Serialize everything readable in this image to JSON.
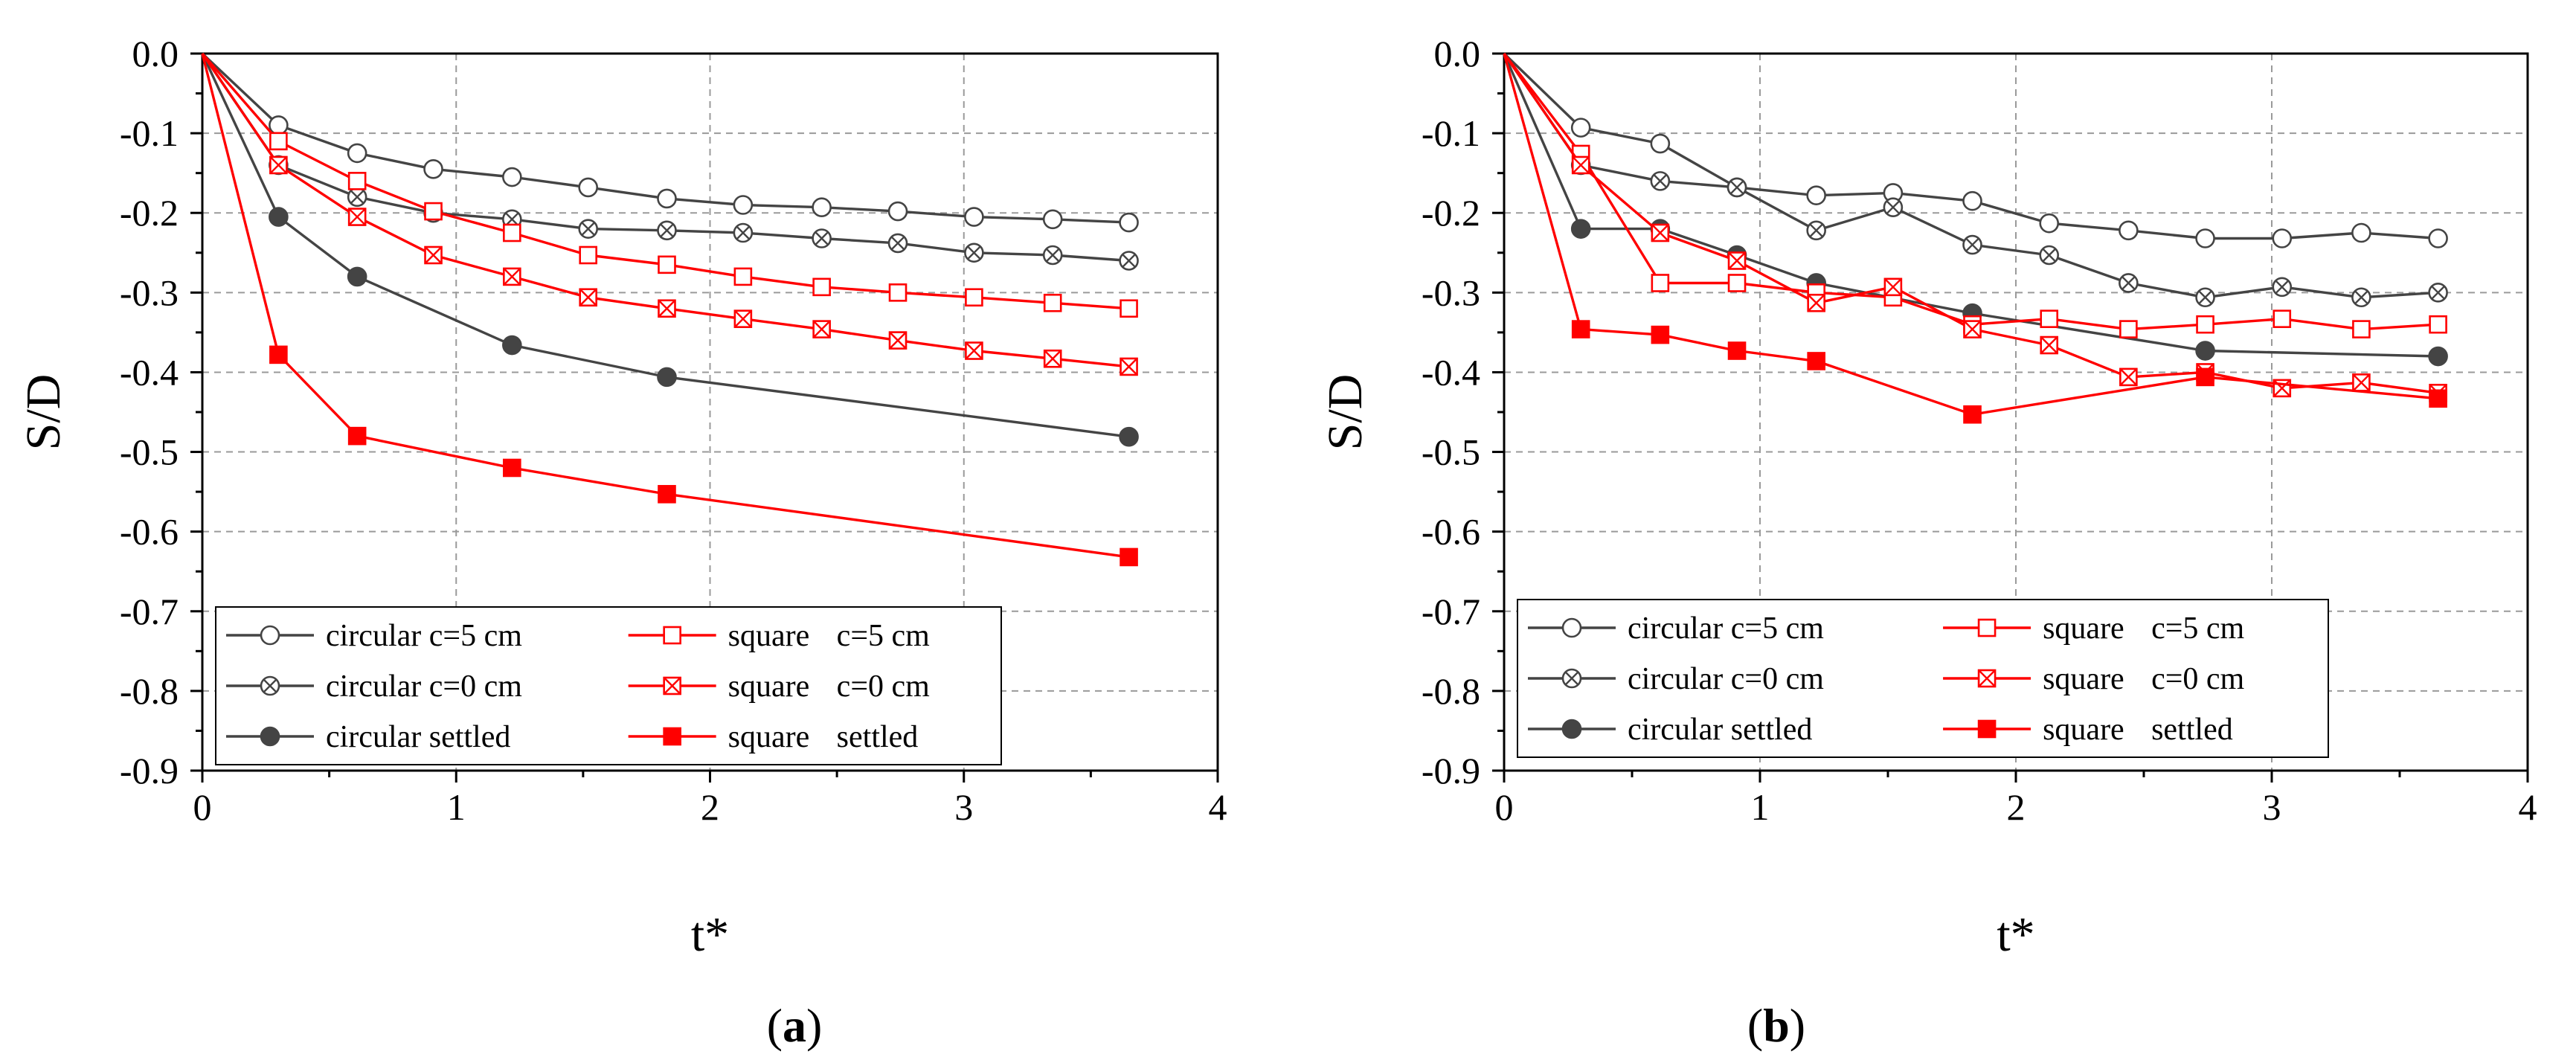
{
  "colors": {
    "circular": "#444444",
    "square": "#ff0000",
    "grid": "#9a9a9a",
    "axis": "#000000"
  },
  "chart_data": [
    {
      "panel": "a",
      "panel_label": "a",
      "type": "line",
      "xlabel": "t*",
      "ylabel": "S/D",
      "xlim": [
        0,
        4
      ],
      "ylim": [
        -0.9,
        0.0
      ],
      "xticks": [
        "0",
        "1",
        "2",
        "3",
        "4"
      ],
      "yticks": [
        "0.0",
        "-0.1",
        "-0.2",
        "-0.3",
        "-0.4",
        "-0.5",
        "-0.6",
        "-0.7",
        "-0.8",
        "-0.9"
      ],
      "grid": true,
      "legend_position": "bottom-left",
      "series": [
        {
          "name": "circular c=5 cm",
          "label_left": "circular c=5 cm",
          "label_right": "",
          "group": "circular",
          "marker": "open-circle",
          "points": [
            [
              0,
              0
            ],
            [
              0.3,
              -0.09
            ],
            [
              0.61,
              -0.125
            ],
            [
              0.91,
              -0.145
            ],
            [
              1.22,
              -0.155
            ],
            [
              1.52,
              -0.168
            ],
            [
              1.83,
              -0.182
            ],
            [
              2.13,
              -0.19
            ],
            [
              2.44,
              -0.193
            ],
            [
              2.74,
              -0.198
            ],
            [
              3.04,
              -0.205
            ],
            [
              3.35,
              -0.208
            ],
            [
              3.65,
              -0.212
            ]
          ]
        },
        {
          "name": "circular c=0 cm",
          "label_left": "circular c=0 cm",
          "label_right": "",
          "group": "circular",
          "marker": "crossed-circle",
          "points": [
            [
              0,
              0
            ],
            [
              0.3,
              -0.14
            ],
            [
              0.61,
              -0.18
            ],
            [
              0.91,
              -0.2
            ],
            [
              1.22,
              -0.208
            ],
            [
              1.52,
              -0.22
            ],
            [
              1.83,
              -0.222
            ],
            [
              2.13,
              -0.225
            ],
            [
              2.44,
              -0.232
            ],
            [
              2.74,
              -0.238
            ],
            [
              3.04,
              -0.25
            ],
            [
              3.35,
              -0.253
            ],
            [
              3.65,
              -0.26
            ]
          ]
        },
        {
          "name": "circular settled",
          "label_left": "circular settled",
          "label_right": "",
          "group": "circular",
          "marker": "filled-circle",
          "points": [
            [
              0,
              0
            ],
            [
              0.3,
              -0.205
            ],
            [
              0.61,
              -0.28
            ],
            [
              1.22,
              -0.366
            ],
            [
              1.83,
              -0.406
            ],
            [
              3.65,
              -0.481
            ]
          ]
        },
        {
          "name": "square c=5 cm",
          "label_left": "square",
          "label_right": "c=5 cm",
          "group": "square",
          "marker": "open-square",
          "points": [
            [
              0,
              0
            ],
            [
              0.3,
              -0.11
            ],
            [
              0.61,
              -0.16
            ],
            [
              0.91,
              -0.198
            ],
            [
              1.22,
              -0.225
            ],
            [
              1.52,
              -0.253
            ],
            [
              1.83,
              -0.265
            ],
            [
              2.13,
              -0.28
            ],
            [
              2.44,
              -0.293
            ],
            [
              2.74,
              -0.3
            ],
            [
              3.04,
              -0.306
            ],
            [
              3.35,
              -0.313
            ],
            [
              3.65,
              -0.32
            ]
          ]
        },
        {
          "name": "square c=0 cm",
          "label_left": "square",
          "label_right": "c=0 cm",
          "group": "square",
          "marker": "crossed-square",
          "points": [
            [
              0,
              0
            ],
            [
              0.3,
              -0.14
            ],
            [
              0.61,
              -0.205
            ],
            [
              0.91,
              -0.253
            ],
            [
              1.22,
              -0.28
            ],
            [
              1.52,
              -0.306
            ],
            [
              1.83,
              -0.32
            ],
            [
              2.13,
              -0.333
            ],
            [
              2.44,
              -0.346
            ],
            [
              2.74,
              -0.36
            ],
            [
              3.04,
              -0.373
            ],
            [
              3.35,
              -0.383
            ],
            [
              3.65,
              -0.393
            ]
          ]
        },
        {
          "name": "square settled",
          "label_left": "square",
          "label_right": "settled",
          "group": "square",
          "marker": "filled-square",
          "points": [
            [
              0,
              0
            ],
            [
              0.3,
              -0.378
            ],
            [
              0.61,
              -0.48
            ],
            [
              1.22,
              -0.52
            ],
            [
              1.83,
              -0.553
            ],
            [
              3.65,
              -0.632
            ]
          ]
        }
      ]
    },
    {
      "panel": "b",
      "panel_label": "b",
      "type": "line",
      "xlabel": "t*",
      "ylabel": "S/D",
      "xlim": [
        0,
        4
      ],
      "ylim": [
        -0.9,
        0.0
      ],
      "xticks": [
        "0",
        "1",
        "2",
        "3",
        "4"
      ],
      "yticks": [
        "0.0",
        "-0.1",
        "-0.2",
        "-0.3",
        "-0.4",
        "-0.5",
        "-0.6",
        "-0.7",
        "-0.8",
        "-0.9"
      ],
      "grid": true,
      "legend_position": "bottom-left",
      "series": [
        {
          "name": "circular c=5 cm",
          "label_left": "circular c=5 cm",
          "label_right": "",
          "group": "circular",
          "marker": "open-circle",
          "points": [
            [
              0,
              0
            ],
            [
              0.3,
              -0.093
            ],
            [
              0.61,
              -0.113
            ],
            [
              0.91,
              -0.168
            ],
            [
              1.22,
              -0.178
            ],
            [
              1.52,
              -0.175
            ],
            [
              1.83,
              -0.185
            ],
            [
              2.13,
              -0.213
            ],
            [
              2.44,
              -0.222
            ],
            [
              2.74,
              -0.232
            ],
            [
              3.04,
              -0.232
            ],
            [
              3.35,
              -0.225
            ],
            [
              3.65,
              -0.232
            ]
          ]
        },
        {
          "name": "circular c=0 cm",
          "label_left": "circular c=0 cm",
          "label_right": "",
          "group": "circular",
          "marker": "crossed-circle",
          "points": [
            [
              0,
              0
            ],
            [
              0.3,
              -0.14
            ],
            [
              0.61,
              -0.16
            ],
            [
              0.91,
              -0.168
            ],
            [
              1.22,
              -0.222
            ],
            [
              1.52,
              -0.193
            ],
            [
              1.83,
              -0.24
            ],
            [
              2.13,
              -0.253
            ],
            [
              2.44,
              -0.288
            ],
            [
              2.74,
              -0.306
            ],
            [
              3.04,
              -0.293
            ],
            [
              3.35,
              -0.306
            ],
            [
              3.65,
              -0.3
            ]
          ]
        },
        {
          "name": "circular settled",
          "label_left": "circular settled",
          "label_right": "",
          "group": "circular",
          "marker": "filled-circle",
          "points": [
            [
              0,
              0
            ],
            [
              0.3,
              -0.22
            ],
            [
              0.61,
              -0.22
            ],
            [
              0.91,
              -0.253
            ],
            [
              1.22,
              -0.288
            ],
            [
              1.83,
              -0.326
            ],
            [
              2.74,
              -0.373
            ],
            [
              3.65,
              -0.38
            ]
          ]
        },
        {
          "name": "square c=5 cm",
          "label_left": "square",
          "label_right": "c=5 cm",
          "group": "square",
          "marker": "open-square",
          "points": [
            [
              0,
              0
            ],
            [
              0.3,
              -0.126
            ],
            [
              0.61,
              -0.288
            ],
            [
              0.91,
              -0.288
            ],
            [
              1.22,
              -0.3
            ],
            [
              1.52,
              -0.306
            ],
            [
              1.83,
              -0.34
            ],
            [
              2.13,
              -0.333
            ],
            [
              2.44,
              -0.346
            ],
            [
              2.74,
              -0.34
            ],
            [
              3.04,
              -0.333
            ],
            [
              3.35,
              -0.346
            ],
            [
              3.65,
              -0.34
            ]
          ]
        },
        {
          "name": "square c=0 cm",
          "label_left": "square",
          "label_right": "c=0 cm",
          "group": "square",
          "marker": "crossed-square",
          "points": [
            [
              0,
              0
            ],
            [
              0.3,
              -0.14
            ],
            [
              0.61,
              -0.225
            ],
            [
              0.91,
              -0.26
            ],
            [
              1.22,
              -0.313
            ],
            [
              1.52,
              -0.293
            ],
            [
              1.83,
              -0.346
            ],
            [
              2.13,
              -0.366
            ],
            [
              2.44,
              -0.406
            ],
            [
              2.74,
              -0.4
            ],
            [
              3.04,
              -0.42
            ],
            [
              3.35,
              -0.413
            ],
            [
              3.65,
              -0.426
            ]
          ]
        },
        {
          "name": "square settled",
          "label_left": "square",
          "label_right": "settled",
          "group": "square",
          "marker": "filled-square",
          "points": [
            [
              0,
              0
            ],
            [
              0.3,
              -0.346
            ],
            [
              0.61,
              -0.353
            ],
            [
              0.91,
              -0.373
            ],
            [
              1.22,
              -0.386
            ],
            [
              1.83,
              -0.453
            ],
            [
              2.74,
              -0.406
            ],
            [
              3.65,
              -0.433
            ]
          ]
        }
      ]
    }
  ]
}
